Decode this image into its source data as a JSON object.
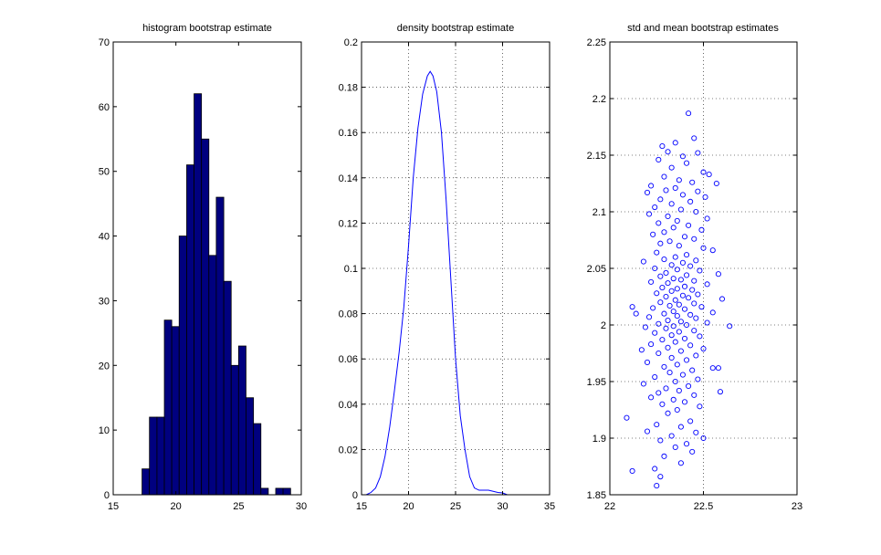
{
  "colors": {
    "bar_fill": "#00007f",
    "line": "#0000ff",
    "marker": "#0000ff",
    "axis": "#000000",
    "background": "#ffffff"
  },
  "chart_data": [
    {
      "type": "bar",
      "title": "histogram bootstrap estimate",
      "xlabel": "",
      "ylabel": "",
      "xlim": [
        15,
        30
      ],
      "ylim": [
        0,
        70
      ],
      "xticks": [
        15,
        20,
        25,
        30
      ],
      "yticks": [
        0,
        10,
        20,
        30,
        40,
        50,
        60,
        70
      ],
      "grid": false,
      "bin_edges": [
        17.3,
        17.89,
        18.49,
        19.08,
        19.67,
        20.26,
        20.86,
        21.45,
        22.04,
        22.63,
        23.22,
        23.82,
        24.41,
        25.0,
        25.59,
        26.19,
        26.78,
        27.37,
        27.96,
        28.55,
        29.15
      ],
      "counts": [
        4,
        12,
        12,
        27,
        26,
        40,
        51,
        62,
        55,
        37,
        46,
        33,
        20,
        23,
        15,
        11,
        1,
        0,
        1,
        1
      ]
    },
    {
      "type": "line",
      "title": "density bootstrap estimate",
      "xlabel": "",
      "ylabel": "",
      "xlim": [
        15,
        35
      ],
      "ylim": [
        0,
        0.2
      ],
      "xticks": [
        15,
        20,
        25,
        30,
        35
      ],
      "yticks": [
        0,
        0.02,
        0.04,
        0.06,
        0.08,
        0.1,
        0.12,
        0.14,
        0.16,
        0.18,
        0.2
      ],
      "grid": true,
      "x": [
        15.5,
        16,
        16.5,
        17,
        17.5,
        18,
        18.5,
        19,
        19.5,
        20,
        20.5,
        21,
        21.5,
        22,
        22.3,
        22.6,
        23,
        23.5,
        24,
        24.5,
        25,
        25.5,
        26,
        26.5,
        27,
        27.5,
        28,
        28.5,
        29,
        29.5,
        30,
        30.5
      ],
      "y": [
        0.0,
        0.001,
        0.003,
        0.008,
        0.017,
        0.03,
        0.046,
        0.063,
        0.083,
        0.11,
        0.14,
        0.162,
        0.177,
        0.185,
        0.187,
        0.185,
        0.178,
        0.16,
        0.13,
        0.095,
        0.06,
        0.035,
        0.02,
        0.008,
        0.003,
        0.002,
        0.002,
        0.002,
        0.0015,
        0.001,
        0.0008,
        0.0
      ]
    },
    {
      "type": "scatter",
      "title": "std and mean bootstrap estimates",
      "xlabel": "",
      "ylabel": "",
      "xlim": [
        22,
        23
      ],
      "ylim": [
        1.85,
        2.25
      ],
      "xticks": [
        22,
        22.5,
        23
      ],
      "yticks": [
        1.85,
        1.9,
        1.95,
        2,
        2.05,
        2.1,
        2.15,
        2.2,
        2.25
      ],
      "grid": true,
      "marker": "circle",
      "points": [
        [
          22.42,
          2.187
        ],
        [
          22.45,
          2.165
        ],
        [
          22.28,
          2.158
        ],
        [
          22.35,
          2.161
        ],
        [
          22.31,
          2.153
        ],
        [
          22.47,
          2.152
        ],
        [
          22.39,
          2.149
        ],
        [
          22.26,
          2.146
        ],
        [
          22.41,
          2.143
        ],
        [
          22.33,
          2.139
        ],
        [
          22.5,
          2.135
        ],
        [
          22.53,
          2.133
        ],
        [
          22.29,
          2.131
        ],
        [
          22.37,
          2.128
        ],
        [
          22.44,
          2.126
        ],
        [
          22.57,
          2.125
        ],
        [
          22.22,
          2.123
        ],
        [
          22.35,
          2.121
        ],
        [
          22.3,
          2.119
        ],
        [
          22.47,
          2.118
        ],
        [
          22.2,
          2.117
        ],
        [
          22.39,
          2.115
        ],
        [
          22.51,
          2.113
        ],
        [
          22.27,
          2.111
        ],
        [
          22.43,
          2.109
        ],
        [
          22.33,
          2.107
        ],
        [
          22.24,
          2.104
        ],
        [
          22.38,
          2.102
        ],
        [
          22.46,
          2.1
        ],
        [
          22.21,
          2.098
        ],
        [
          22.31,
          2.096
        ],
        [
          22.52,
          2.094
        ],
        [
          22.36,
          2.092
        ],
        [
          22.26,
          2.09
        ],
        [
          22.42,
          2.088
        ],
        [
          22.34,
          2.086
        ],
        [
          22.49,
          2.084
        ],
        [
          22.29,
          2.082
        ],
        [
          22.23,
          2.08
        ],
        [
          22.4,
          2.078
        ],
        [
          22.45,
          2.076
        ],
        [
          22.32,
          2.074
        ],
        [
          22.27,
          2.072
        ],
        [
          22.37,
          2.07
        ],
        [
          22.5,
          2.068
        ],
        [
          22.55,
          2.066
        ],
        [
          22.25,
          2.064
        ],
        [
          22.41,
          2.062
        ],
        [
          22.35,
          2.06
        ],
        [
          22.29,
          2.058
        ],
        [
          22.46,
          2.057
        ],
        [
          22.18,
          2.056
        ],
        [
          22.39,
          2.055
        ],
        [
          22.33,
          2.053
        ],
        [
          22.43,
          2.052
        ],
        [
          22.24,
          2.05
        ],
        [
          22.36,
          2.049
        ],
        [
          22.48,
          2.048
        ],
        [
          22.3,
          2.046
        ],
        [
          22.58,
          2.045
        ],
        [
          22.41,
          2.044
        ],
        [
          22.27,
          2.043
        ],
        [
          22.34,
          2.041
        ],
        [
          22.38,
          2.04
        ],
        [
          22.45,
          2.039
        ],
        [
          22.22,
          2.038
        ],
        [
          22.31,
          2.037
        ],
        [
          22.52,
          2.036
        ],
        [
          22.4,
          2.034
        ],
        [
          22.28,
          2.033
        ],
        [
          22.36,
          2.032
        ],
        [
          22.44,
          2.031
        ],
        [
          22.33,
          2.03
        ],
        [
          22.25,
          2.028
        ],
        [
          22.47,
          2.027
        ],
        [
          22.39,
          2.026
        ],
        [
          22.3,
          2.025
        ],
        [
          22.42,
          2.024
        ],
        [
          22.35,
          2.022
        ],
        [
          22.6,
          2.023
        ],
        [
          22.12,
          2.016
        ],
        [
          22.27,
          2.02
        ],
        [
          22.45,
          2.019
        ],
        [
          22.37,
          2.018
        ],
        [
          22.32,
          2.017
        ],
        [
          22.49,
          2.016
        ],
        [
          22.23,
          2.015
        ],
        [
          22.4,
          2.014
        ],
        [
          22.34,
          2.012
        ],
        [
          22.55,
          2.011
        ],
        [
          22.29,
          2.01
        ],
        [
          22.43,
          2.009
        ],
        [
          22.14,
          2.01
        ],
        [
          22.36,
          2.008
        ],
        [
          22.21,
          2.007
        ],
        [
          22.46,
          2.006
        ],
        [
          22.31,
          2.004
        ],
        [
          22.38,
          2.003
        ],
        [
          22.52,
          2.002
        ],
        [
          22.26,
          2.001
        ],
        [
          22.41,
          2.0
        ],
        [
          22.34,
          1.999
        ],
        [
          22.64,
          1.999
        ],
        [
          22.19,
          1.998
        ],
        [
          22.3,
          1.997
        ],
        [
          22.45,
          1.995
        ],
        [
          22.37,
          1.994
        ],
        [
          22.24,
          1.993
        ],
        [
          22.33,
          1.991
        ],
        [
          22.48,
          1.99
        ],
        [
          22.4,
          1.988
        ],
        [
          22.28,
          1.987
        ],
        [
          22.35,
          1.985
        ],
        [
          22.22,
          1.983
        ],
        [
          22.43,
          1.982
        ],
        [
          22.31,
          1.98
        ],
        [
          22.5,
          1.979
        ],
        [
          22.17,
          1.978
        ],
        [
          22.38,
          1.977
        ],
        [
          22.26,
          1.975
        ],
        [
          22.46,
          1.973
        ],
        [
          22.33,
          1.971
        ],
        [
          22.41,
          1.969
        ],
        [
          22.2,
          1.967
        ],
        [
          22.36,
          1.965
        ],
        [
          22.29,
          1.963
        ],
        [
          22.55,
          1.962
        ],
        [
          22.58,
          1.962
        ],
        [
          22.44,
          1.96
        ],
        [
          22.32,
          1.958
        ],
        [
          22.39,
          1.956
        ],
        [
          22.24,
          1.954
        ],
        [
          22.47,
          1.952
        ],
        [
          22.35,
          1.95
        ],
        [
          22.18,
          1.948
        ],
        [
          22.42,
          1.946
        ],
        [
          22.3,
          1.944
        ],
        [
          22.37,
          1.942
        ],
        [
          22.59,
          1.941
        ],
        [
          22.26,
          1.94
        ],
        [
          22.45,
          1.938
        ],
        [
          22.22,
          1.936
        ],
        [
          22.34,
          1.934
        ],
        [
          22.4,
          1.932
        ],
        [
          22.28,
          1.93
        ],
        [
          22.48,
          1.928
        ],
        [
          22.36,
          1.925
        ],
        [
          22.31,
          1.922
        ],
        [
          22.09,
          1.918
        ],
        [
          22.43,
          1.915
        ],
        [
          22.25,
          1.912
        ],
        [
          22.38,
          1.91
        ],
        [
          22.2,
          1.906
        ],
        [
          22.46,
          1.905
        ],
        [
          22.33,
          1.902
        ],
        [
          22.5,
          1.9
        ],
        [
          22.27,
          1.898
        ],
        [
          22.41,
          1.895
        ],
        [
          22.35,
          1.892
        ],
        [
          22.44,
          1.888
        ],
        [
          22.29,
          1.884
        ],
        [
          22.38,
          1.878
        ],
        [
          22.12,
          1.871
        ],
        [
          22.24,
          1.873
        ],
        [
          22.27,
          1.866
        ],
        [
          22.25,
          1.858
        ]
      ]
    }
  ]
}
